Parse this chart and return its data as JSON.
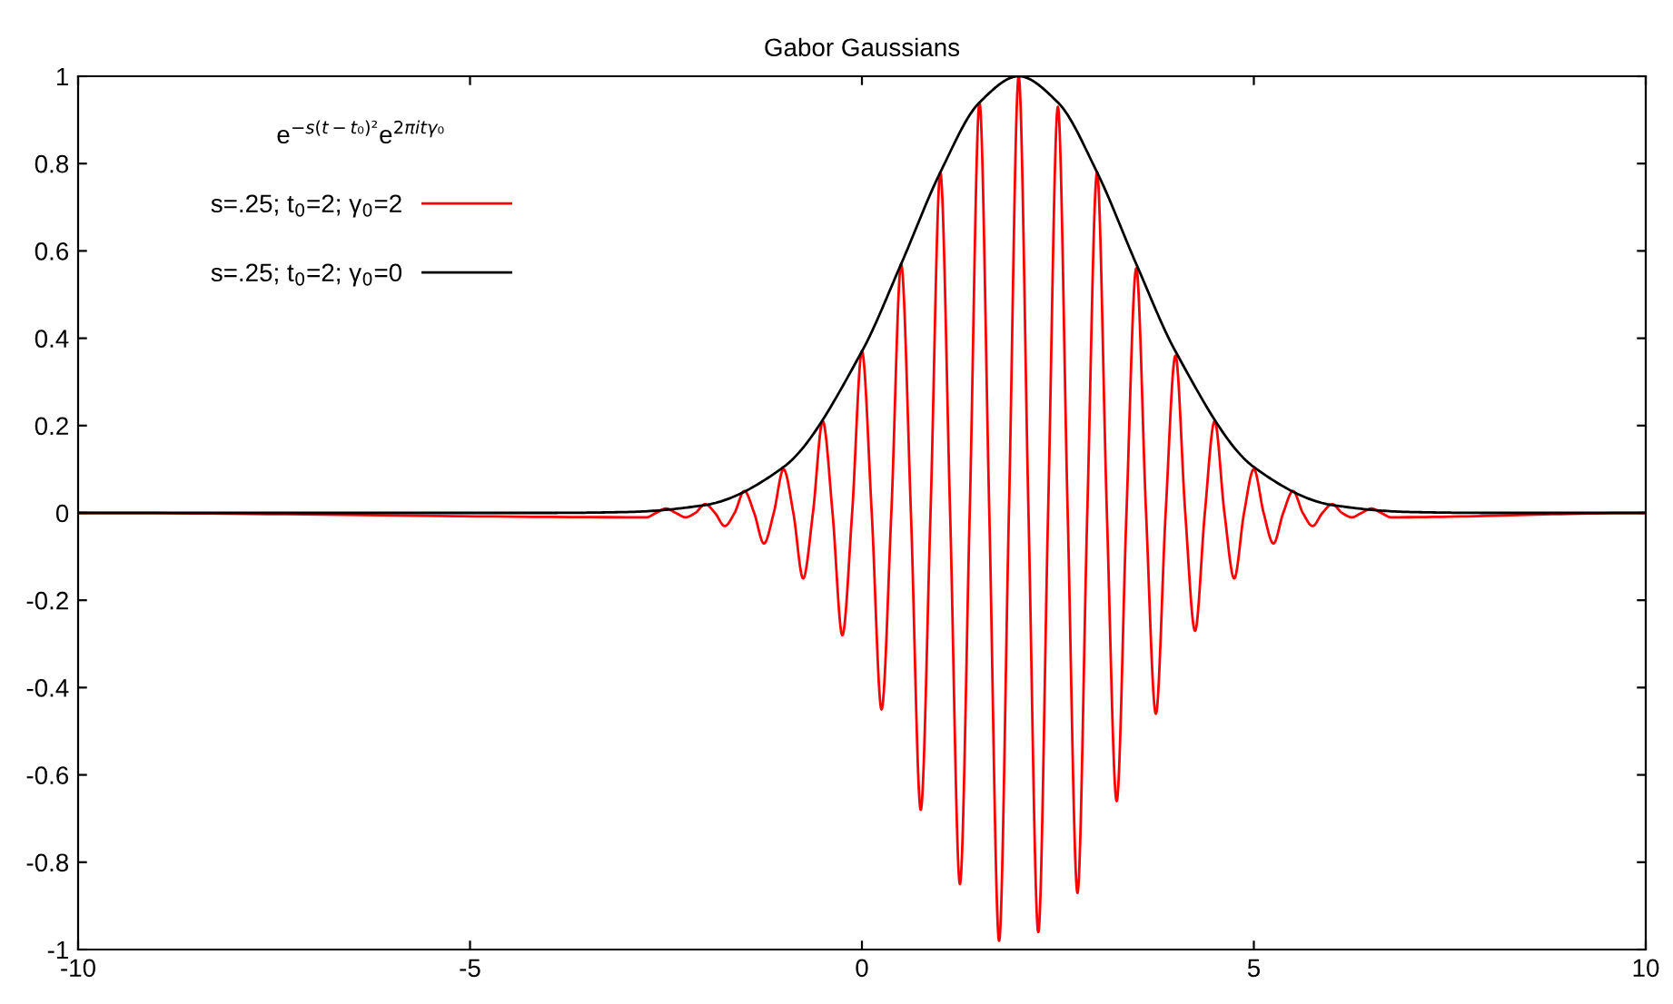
{
  "chart_data": {
    "type": "line",
    "title": "Gabor Gaussians",
    "legend_title": "e$^{−s(t−t₀)²}$e$^{2πitγ₀}$",
    "legend": "top left",
    "grid": false,
    "marker": "none",
    "line_style": "solid",
    "xlim": [
      -10,
      10
    ],
    "xticks": [
      -10,
      -5,
      0,
      5,
      10
    ],
    "ylim": [
      -1,
      1
    ],
    "yticks": [
      -1,
      -0.8,
      -0.6,
      -0.4,
      -0.2,
      0,
      0.2,
      0.4,
      0.6,
      0.8,
      1
    ],
    "series": [
      {
        "name": "s=.25; t$_{0}$=2; γ$_{0}$=2",
        "color": "#ff0000",
        "x": [
          -10,
          -2.75,
          -2.625,
          -2.5,
          -2.375,
          -2.25,
          -2.125,
          -2,
          -1.875,
          -1.75,
          -1.625,
          -1.5,
          -1.375,
          -1.25,
          -1.125,
          -1,
          -0.875,
          -0.75,
          -0.625,
          -0.5,
          -0.375,
          -0.25,
          -0.125,
          0,
          0.125,
          0.25,
          0.375,
          0.5,
          0.625,
          0.75,
          0.875,
          1,
          1.125,
          1.25,
          1.375,
          1.5,
          1.625,
          1.75,
          1.875,
          2,
          2.125,
          2.25,
          2.375,
          2.5,
          2.625,
          2.75,
          2.875,
          3,
          3.125,
          3.25,
          3.375,
          3.5,
          3.625,
          3.75,
          3.875,
          4,
          4.125,
          4.25,
          4.375,
          4.5,
          4.625,
          4.75,
          4.875,
          5,
          5.125,
          5.25,
          5.375,
          5.5,
          5.625,
          5.75,
          5.875,
          6,
          6.125,
          6.25,
          6.375,
          6.5,
          6.625,
          6.75,
          10
        ],
        "values": [
          0,
          -0.01,
          0,
          0.01,
          0,
          -0.01,
          0,
          0.02,
          0,
          -0.03,
          0,
          0.05,
          0,
          -0.07,
          0,
          0.1,
          0,
          -0.15,
          0,
          0.21,
          0,
          -0.28,
          0,
          0.37,
          0,
          -0.45,
          0,
          0.57,
          0,
          -0.68,
          0,
          0.78,
          0,
          -0.85,
          0,
          0.94,
          0,
          -0.98,
          0,
          1,
          0,
          -0.96,
          0,
          0.93,
          0,
          -0.87,
          0,
          0.78,
          0,
          -0.66,
          0,
          0.56,
          0,
          -0.46,
          0,
          0.36,
          0,
          -0.27,
          0,
          0.21,
          0,
          -0.15,
          0,
          0.1,
          0,
          -0.07,
          0,
          0.05,
          0,
          -0.03,
          0,
          0.02,
          0,
          -0.01,
          0,
          0.01,
          0,
          -0.01,
          0
        ]
      },
      {
        "name": "s=.25; t$_{0}$=2; γ$_{0}$=0",
        "color": "#000000",
        "x": [
          -10,
          -4,
          -3,
          -2,
          -1,
          0,
          0.5,
          1,
          1.5,
          2,
          2.5,
          3,
          3.5,
          4,
          5,
          6,
          7,
          8,
          10
        ],
        "values": [
          0,
          0,
          0.002,
          0.018,
          0.105,
          0.37,
          0.57,
          0.78,
          0.94,
          1,
          0.94,
          0.78,
          0.57,
          0.37,
          0.105,
          0.018,
          0.002,
          0,
          0
        ]
      }
    ]
  }
}
